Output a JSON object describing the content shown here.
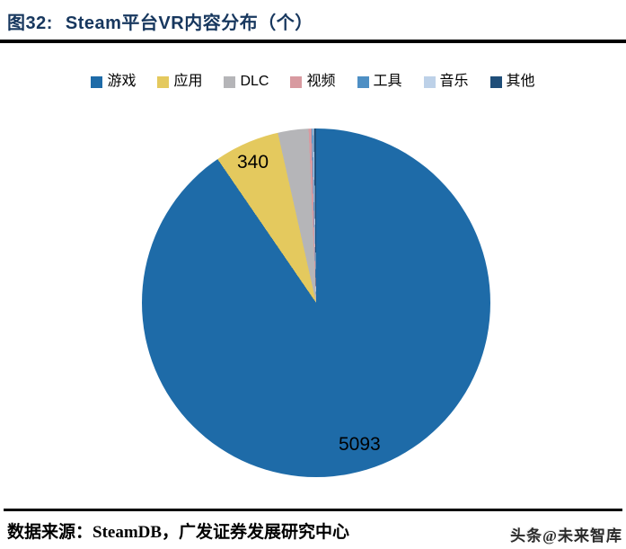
{
  "title": {
    "prefix": "图32:",
    "text": "Steam平台VR内容分布（个）"
  },
  "legend": [
    {
      "label": "游戏",
      "color": "#1e6ba8"
    },
    {
      "label": "应用",
      "color": "#e4c95e"
    },
    {
      "label": "DLC",
      "color": "#b5b5b8"
    },
    {
      "label": "视频",
      "color": "#d89aa0"
    },
    {
      "label": "工具",
      "color": "#4e8fc4"
    },
    {
      "label": "音乐",
      "color": "#bdd1e8"
    },
    {
      "label": "其他",
      "color": "#1f4e79"
    }
  ],
  "chart_data": {
    "type": "pie",
    "title": "Steam平台VR内容分布（个）",
    "categories": [
      "游戏",
      "应用",
      "DLC",
      "视频",
      "工具",
      "音乐",
      "其他"
    ],
    "values": [
      5093,
      340,
      160,
      15,
      6,
      6,
      12
    ],
    "colors": [
      "#1e6ba8",
      "#e4c95e",
      "#b5b5b8",
      "#d89aa0",
      "#4e8fc4",
      "#bdd1e8",
      "#1f4e79"
    ],
    "start_angle_deg": 0,
    "direction": "clockwise",
    "legend_position": "top",
    "data_labels": [
      {
        "category": "游戏",
        "value": "5093"
      },
      {
        "category": "应用",
        "value": "340"
      }
    ]
  },
  "footer": {
    "source": "数据来源：SteamDB，广发证券发展研究中心",
    "watermark": "头条@未来智库"
  }
}
